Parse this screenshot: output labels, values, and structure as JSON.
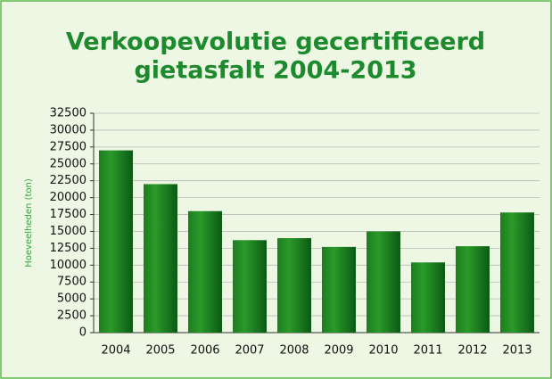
{
  "chart_data": {
    "type": "bar",
    "title_lines": [
      "Verkoopevolutie gecertificeerd",
      "gietasfalt 2004-2013"
    ],
    "y_label": "Hoeveelheden (ton)",
    "categories": [
      "2004",
      "2005",
      "2006",
      "2007",
      "2008",
      "2009",
      "2010",
      "2011",
      "2012",
      "2013"
    ],
    "values": [
      27000,
      22000,
      18000,
      13700,
      14000,
      12700,
      15000,
      10400,
      12800,
      17800
    ],
    "color": "#2a9a2a",
    "ylim": [
      0,
      32500
    ],
    "yticks": [
      0,
      2500,
      5000,
      7500,
      10000,
      12500,
      15000,
      17500,
      20000,
      22500,
      25000,
      27500,
      30000,
      32500
    ],
    "grid": true
  }
}
